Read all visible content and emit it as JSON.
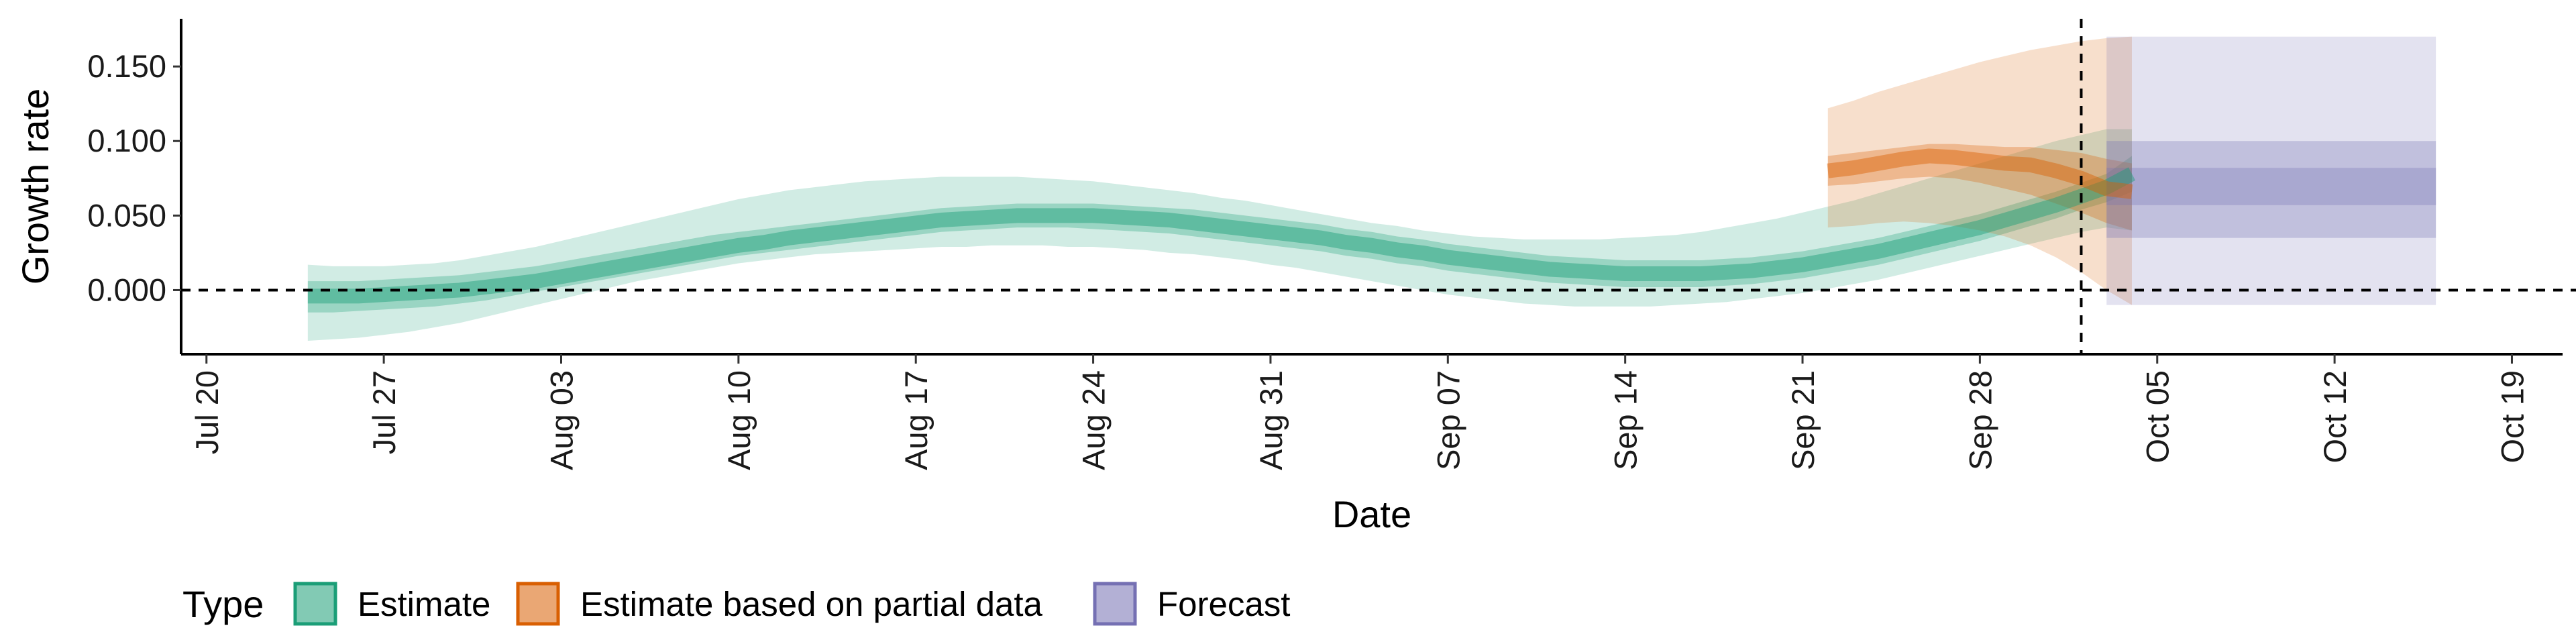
{
  "chart_data": {
    "type": "area",
    "xlabel": "Date",
    "ylabel": "Growth rate",
    "x_ticks": [
      "Jul 20",
      "Jul 27",
      "Aug 03",
      "Aug 10",
      "Aug 17",
      "Aug 24",
      "Aug 31",
      "Sep 07",
      "Sep 14",
      "Sep 21",
      "Sep 28",
      "Oct 05",
      "Oct 12",
      "Oct 19"
    ],
    "y_ticks": [
      "0.000",
      "0.050",
      "0.100",
      "0.150"
    ],
    "y_tick_values": [
      0,
      0.05,
      0.1,
      0.15
    ],
    "xlim": [
      "2020-07-19",
      "2020-10-21"
    ],
    "ylim": [
      -0.043,
      0.182
    ],
    "hline_y": 0,
    "vline_x": "2020-10-02",
    "legend": {
      "title": "Type",
      "position": "bottom",
      "entries": [
        "Estimate",
        "Estimate based on partial data",
        "Forecast"
      ]
    },
    "colors": {
      "Estimate": "#1b9e77",
      "Estimate based on partial data": "#d95f02",
      "Forecast": "#7570b3"
    },
    "series": [
      {
        "type": "Estimate",
        "start_date": "2020-07-24",
        "median": [
          -0.004,
          -0.004,
          -0.004,
          -0.003,
          -0.002,
          -0.001,
          0.0,
          0.002,
          0.004,
          0.006,
          0.009,
          0.012,
          0.015,
          0.018,
          0.021,
          0.024,
          0.027,
          0.03,
          0.032,
          0.035,
          0.037,
          0.039,
          0.041,
          0.043,
          0.045,
          0.047,
          0.048,
          0.049,
          0.05,
          0.05,
          0.05,
          0.05,
          0.049,
          0.048,
          0.047,
          0.045,
          0.043,
          0.041,
          0.039,
          0.037,
          0.035,
          0.032,
          0.03,
          0.027,
          0.025,
          0.022,
          0.02,
          0.018,
          0.016,
          0.014,
          0.013,
          0.012,
          0.011,
          0.011,
          0.011,
          0.011,
          0.012,
          0.013,
          0.015,
          0.017,
          0.02,
          0.023,
          0.026,
          0.03,
          0.034,
          0.038,
          0.042,
          0.047,
          0.052,
          0.057,
          0.063,
          0.069,
          0.078
        ],
        "lower90": [
          -0.034,
          -0.033,
          -0.032,
          -0.03,
          -0.028,
          -0.025,
          -0.022,
          -0.018,
          -0.014,
          -0.01,
          -0.006,
          -0.002,
          0.002,
          0.006,
          0.009,
          0.012,
          0.015,
          0.018,
          0.02,
          0.022,
          0.024,
          0.025,
          0.026,
          0.027,
          0.028,
          0.029,
          0.029,
          0.03,
          0.03,
          0.03,
          0.029,
          0.029,
          0.028,
          0.027,
          0.025,
          0.024,
          0.022,
          0.02,
          0.017,
          0.015,
          0.012,
          0.009,
          0.006,
          0.003,
          0.0,
          -0.003,
          -0.005,
          -0.007,
          -0.009,
          -0.01,
          -0.011,
          -0.011,
          -0.011,
          -0.011,
          -0.01,
          -0.009,
          -0.008,
          -0.006,
          -0.004,
          -0.002,
          0.001,
          0.004,
          0.007,
          0.011,
          0.015,
          0.019,
          0.023,
          0.027,
          0.031,
          0.035,
          0.039,
          0.042,
          0.04
        ],
        "upper90": [
          0.017,
          0.016,
          0.016,
          0.016,
          0.017,
          0.018,
          0.02,
          0.023,
          0.026,
          0.029,
          0.033,
          0.037,
          0.041,
          0.045,
          0.049,
          0.053,
          0.057,
          0.061,
          0.064,
          0.067,
          0.069,
          0.071,
          0.073,
          0.074,
          0.075,
          0.076,
          0.076,
          0.076,
          0.076,
          0.075,
          0.074,
          0.073,
          0.071,
          0.069,
          0.067,
          0.065,
          0.062,
          0.06,
          0.057,
          0.054,
          0.051,
          0.048,
          0.045,
          0.043,
          0.04,
          0.038,
          0.036,
          0.035,
          0.034,
          0.034,
          0.034,
          0.034,
          0.035,
          0.036,
          0.037,
          0.039,
          0.042,
          0.045,
          0.048,
          0.052,
          0.056,
          0.06,
          0.065,
          0.07,
          0.075,
          0.08,
          0.085,
          0.09,
          0.095,
          0.1,
          0.104,
          0.108,
          0.108
        ],
        "lower50": [
          -0.015,
          -0.015,
          -0.014,
          -0.013,
          -0.012,
          -0.011,
          -0.009,
          -0.007,
          -0.004,
          -0.001,
          0.002,
          0.005,
          0.008,
          0.011,
          0.014,
          0.017,
          0.02,
          0.023,
          0.025,
          0.027,
          0.029,
          0.031,
          0.033,
          0.035,
          0.037,
          0.039,
          0.04,
          0.041,
          0.042,
          0.042,
          0.042,
          0.041,
          0.04,
          0.039,
          0.038,
          0.036,
          0.034,
          0.032,
          0.03,
          0.028,
          0.026,
          0.023,
          0.021,
          0.018,
          0.016,
          0.013,
          0.011,
          0.009,
          0.007,
          0.005,
          0.004,
          0.003,
          0.002,
          0.002,
          0.002,
          0.002,
          0.003,
          0.004,
          0.006,
          0.008,
          0.011,
          0.014,
          0.017,
          0.021,
          0.025,
          0.029,
          0.033,
          0.038,
          0.043,
          0.048,
          0.054,
          0.059,
          0.066
        ],
        "upper50": [
          0.006,
          0.006,
          0.006,
          0.007,
          0.008,
          0.009,
          0.01,
          0.012,
          0.014,
          0.016,
          0.019,
          0.022,
          0.025,
          0.028,
          0.031,
          0.034,
          0.037,
          0.039,
          0.041,
          0.043,
          0.045,
          0.047,
          0.049,
          0.051,
          0.053,
          0.055,
          0.056,
          0.057,
          0.058,
          0.058,
          0.058,
          0.058,
          0.057,
          0.056,
          0.055,
          0.054,
          0.052,
          0.05,
          0.048,
          0.046,
          0.044,
          0.041,
          0.039,
          0.036,
          0.034,
          0.031,
          0.029,
          0.027,
          0.025,
          0.023,
          0.022,
          0.021,
          0.02,
          0.02,
          0.02,
          0.02,
          0.021,
          0.022,
          0.024,
          0.026,
          0.029,
          0.032,
          0.035,
          0.039,
          0.043,
          0.047,
          0.051,
          0.056,
          0.061,
          0.066,
          0.072,
          0.078,
          0.09
        ]
      },
      {
        "type": "Estimate based on partial data",
        "start_date": "2020-09-22",
        "median": [
          0.08,
          0.082,
          0.085,
          0.088,
          0.09,
          0.089,
          0.087,
          0.085,
          0.084,
          0.08,
          0.075,
          0.068,
          0.066
        ],
        "lower90": [
          0.042,
          0.043,
          0.045,
          0.046,
          0.045,
          0.043,
          0.04,
          0.036,
          0.03,
          0.022,
          0.012,
          0.0,
          -0.01
        ],
        "upper90": [
          0.122,
          0.127,
          0.133,
          0.138,
          0.143,
          0.148,
          0.153,
          0.157,
          0.161,
          0.164,
          0.167,
          0.169,
          0.17
        ],
        "lower50": [
          0.07,
          0.071,
          0.073,
          0.075,
          0.076,
          0.075,
          0.072,
          0.068,
          0.064,
          0.058,
          0.052,
          0.045,
          0.04
        ],
        "upper50": [
          0.09,
          0.092,
          0.094,
          0.096,
          0.098,
          0.098,
          0.097,
          0.096,
          0.096,
          0.094,
          0.092,
          0.088,
          0.085
        ]
      },
      {
        "type": "Forecast",
        "start_date": "2020-10-03",
        "end_date": "2020-10-16",
        "median": 0.069,
        "lower90": -0.01,
        "upper90": 0.17,
        "lower50": 0.035,
        "upper50": 0.1,
        "lower20": 0.057,
        "upper20": 0.082
      }
    ]
  }
}
